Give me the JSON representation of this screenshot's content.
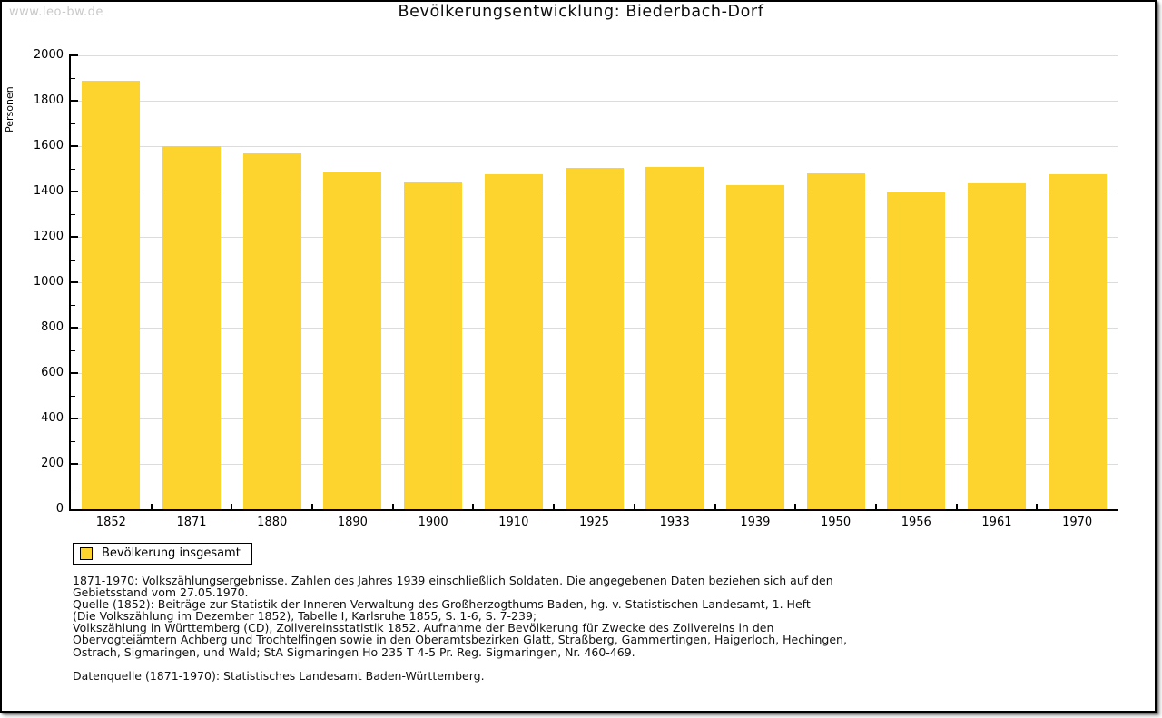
{
  "watermark": "www.leo-bw.de",
  "title": "Bevölkerungsentwicklung: Biederbach-Dorf",
  "chart_data": {
    "type": "bar",
    "title": "Bevölkerungsentwicklung: Biederbach-Dorf",
    "ylabel": "Personen",
    "xlabel": "",
    "categories": [
      "1852",
      "1871",
      "1880",
      "1890",
      "1900",
      "1910",
      "1925",
      "1933",
      "1939",
      "1950",
      "1956",
      "1961",
      "1970"
    ],
    "values": [
      1890,
      1600,
      1570,
      1490,
      1440,
      1475,
      1505,
      1510,
      1430,
      1480,
      1400,
      1435,
      1475
    ],
    "ylim": [
      0,
      2000
    ],
    "ytick_major": 200,
    "ytick_minor": 100,
    "grid": true,
    "legend_position": "bottom-left",
    "bar_color": "#FDD32E",
    "gridline_color": "#dcdcdc"
  },
  "legend": {
    "label": "Bevölkerung insgesamt",
    "swatch_color": "#FDD32E"
  },
  "footnotes": [
    "1871-1970: Volkszählungsergebnisse. Zahlen des Jahres 1939 einschließlich Soldaten. Die angegebenen Daten beziehen sich auf den",
    "Gebietsstand vom 27.05.1970.",
    "Quelle (1852): Beiträge zur Statistik der Inneren Verwaltung des Großherzogthums Baden, hg. v. Statistischen Landesamt, 1. Heft",
    "(Die Volkszählung im Dezember 1852), Tabelle I, Karlsruhe 1855, S. 1-6, S. 7-239;",
    "Volkszählung in Württemberg (CD), Zollvereinsstatistik 1852. Aufnahme der Bevölkerung für Zwecke des Zollvereins in den",
    "Obervogteiämtern Achberg und Trochtelfingen sowie in den Oberamtsbezirken Glatt, Straßberg, Gammertingen, Haigerloch, Hechingen,",
    "Ostrach, Sigmaringen, und Wald; StA Sigmaringen Ho 235 T 4-5 Pr. Reg. Sigmaringen, Nr. 460-469."
  ],
  "datasource": "Datenquelle (1871-1970): Statistisches Landesamt Baden-Württemberg."
}
